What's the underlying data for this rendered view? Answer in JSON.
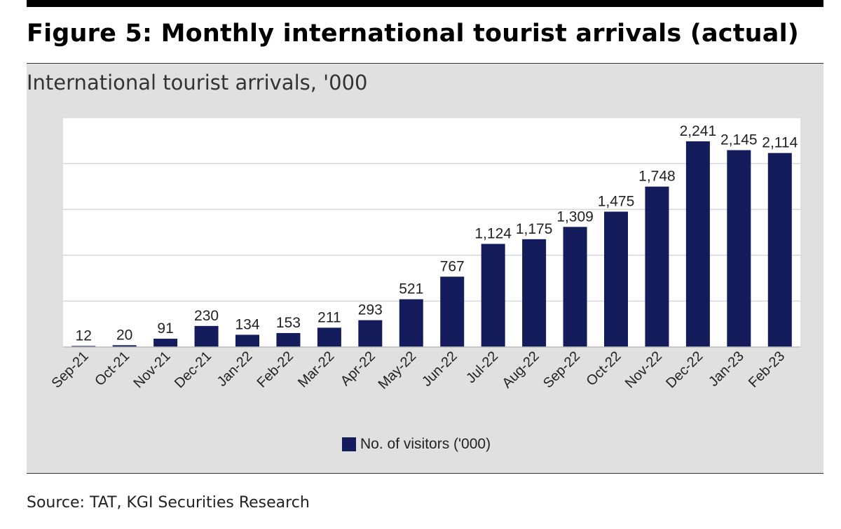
{
  "figure": {
    "title": "Figure 5: Monthly international tourist arrivals (actual)",
    "subtitle": "International tourist arrivals, '000",
    "source": "Source: TAT, KGI Securities Research"
  },
  "chart_data": {
    "type": "bar",
    "title": "International tourist arrivals, '000",
    "categories": [
      "Sep-21",
      "Oct-21",
      "Nov-21",
      "Dec-21",
      "Jan-22",
      "Feb-22",
      "Mar-22",
      "Apr-22",
      "May-22",
      "Jun-22",
      "Jul-22",
      "Aug-22",
      "Sep-22",
      "Oct-22",
      "Nov-22",
      "Dec-22",
      "Jan-23",
      "Feb-23"
    ],
    "series": [
      {
        "name": "No. of visitors ('000)",
        "values": [
          12,
          20,
          91,
          230,
          134,
          153,
          211,
          293,
          521,
          767,
          1124,
          1175,
          1309,
          1475,
          1748,
          2241,
          2145,
          2114
        ],
        "labels": [
          "12",
          "20",
          "91",
          "230",
          "134",
          "153",
          "211",
          "293",
          "521",
          "767",
          "1,124",
          "1,175",
          "1,309",
          "1,475",
          "1,748",
          "2,241",
          "2,145",
          "2,114"
        ]
      }
    ],
    "ylim": [
      0,
      2500
    ],
    "xlabel": "",
    "ylabel": "",
    "grid": true,
    "legend": "bottom-center",
    "colors": {
      "bar": "#141c5c",
      "grid": "#d8d8d8",
      "plot_bg": "#ffffff",
      "panel_bg": "#e0e0e0"
    }
  }
}
